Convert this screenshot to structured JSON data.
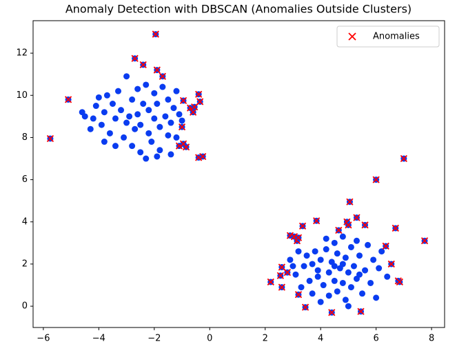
{
  "chart_data": {
    "type": "scatter",
    "title": "Anomaly Detection with DBSCAN (Anomalies Outside Clusters)",
    "xlim": [
      -6.37,
      8.47
    ],
    "ylim": [
      -1.01,
      13.54
    ],
    "xticks": [
      {
        "value": -6,
        "label": "−6"
      },
      {
        "value": -4,
        "label": "−4"
      },
      {
        "value": -2,
        "label": "−2"
      },
      0,
      2,
      4,
      6,
      8
    ],
    "yticks": [
      0,
      2,
      4,
      6,
      8,
      10,
      12
    ],
    "legend": "upper right",
    "series": [
      {
        "color": "#0a3cf0",
        "marker": "o",
        "x": [
          -4.6,
          -4.5,
          -4.3,
          -4.2,
          -4.1,
          -4.0,
          -3.9,
          -3.8,
          -3.8,
          -3.7,
          -3.6,
          -3.5,
          -3.4,
          -3.4,
          -3.3,
          -3.2,
          -3.1,
          -3.0,
          -3.0,
          -2.9,
          -2.8,
          -2.8,
          -2.7,
          -2.6,
          -2.6,
          -2.5,
          -2.5,
          -2.4,
          -2.3,
          -2.3,
          -2.2,
          -2.2,
          -2.1,
          -2.0,
          -2.0,
          -1.9,
          -1.8,
          -1.8,
          -1.7,
          -1.6,
          -1.5,
          -1.5,
          -1.4,
          -1.4,
          -1.3,
          -1.2,
          -1.2,
          -1.1,
          -1.0,
          -1.9,
          2.9,
          3.1,
          3.2,
          3.3,
          3.4,
          3.5,
          3.6,
          3.7,
          3.7,
          3.8,
          3.9,
          4.0,
          4.0,
          4.1,
          4.2,
          4.3,
          4.3,
          4.4,
          4.5,
          4.5,
          4.6,
          4.6,
          4.7,
          4.8,
          4.8,
          4.9,
          4.9,
          5.0,
          5.1,
          5.1,
          5.2,
          5.3,
          5.3,
          5.4,
          5.5,
          5.6,
          5.7,
          5.8,
          5.9,
          6.0,
          6.1,
          6.2,
          5.0,
          4.2,
          3.9,
          4.5,
          5.4,
          4.8,
          6.4,
          3.0
        ],
        "values": [
          9.2,
          9.0,
          8.4,
          8.9,
          9.5,
          9.9,
          8.6,
          7.8,
          9.2,
          10.0,
          8.2,
          9.6,
          7.6,
          8.9,
          10.2,
          9.3,
          8.0,
          8.7,
          10.9,
          9.0,
          7.6,
          9.8,
          8.4,
          10.3,
          9.1,
          7.3,
          8.6,
          9.6,
          7.0,
          10.5,
          8.2,
          9.3,
          7.8,
          10.1,
          8.9,
          9.6,
          7.4,
          8.5,
          10.4,
          9.0,
          8.1,
          9.8,
          7.2,
          8.7,
          9.4,
          10.2,
          8.0,
          9.1,
          8.8,
          7.1,
          2.2,
          1.5,
          2.6,
          0.9,
          1.9,
          2.4,
          1.2,
          0.6,
          2.0,
          2.6,
          1.4,
          0.2,
          2.2,
          1.0,
          2.7,
          1.6,
          0.5,
          2.1,
          3.0,
          1.2,
          2.5,
          0.7,
          1.8,
          3.3,
          1.1,
          2.3,
          0.3,
          1.6,
          2.8,
          0.9,
          1.9,
          3.1,
          1.3,
          2.4,
          0.6,
          1.7,
          2.9,
          1.1,
          2.2,
          0.4,
          1.8,
          2.6,
          0.0,
          3.2,
          1.7,
          1.9,
          1.5,
          2.0,
          1.4,
          1.9
        ]
      },
      {
        "name": "Anomalies",
        "color": "#ff0000",
        "marker": "x",
        "underlay_color": "#0a3cf0",
        "x": [
          -5.75,
          -5.1,
          -2.7,
          -2.4,
          -1.95,
          -1.9,
          -1.7,
          -0.95,
          -0.7,
          -0.6,
          -0.55,
          -0.4,
          -0.35,
          -1.0,
          -1.1,
          -0.95,
          -0.85,
          -0.4,
          -0.25,
          2.2,
          2.55,
          2.6,
          2.6,
          2.8,
          2.9,
          3.05,
          3.15,
          3.2,
          3.2,
          3.35,
          3.45,
          3.85,
          4.4,
          4.65,
          4.95,
          5.0,
          5.05,
          5.3,
          5.45,
          5.6,
          6.0,
          6.35,
          6.55,
          6.7,
          6.8,
          6.85,
          7.0,
          7.75
        ],
        "values": [
          7.95,
          9.8,
          11.75,
          11.45,
          12.9,
          11.2,
          10.9,
          9.75,
          9.4,
          9.2,
          9.45,
          10.05,
          9.7,
          8.5,
          7.6,
          7.7,
          7.55,
          7.05,
          7.1,
          1.15,
          1.45,
          1.85,
          0.9,
          1.6,
          3.35,
          3.3,
          3.1,
          3.25,
          0.55,
          3.8,
          -0.05,
          4.05,
          -0.3,
          3.6,
          4.0,
          3.85,
          4.95,
          4.2,
          -0.25,
          3.85,
          6.0,
          2.85,
          2.0,
          3.7,
          1.2,
          1.15,
          7.0,
          3.1
        ]
      }
    ]
  }
}
